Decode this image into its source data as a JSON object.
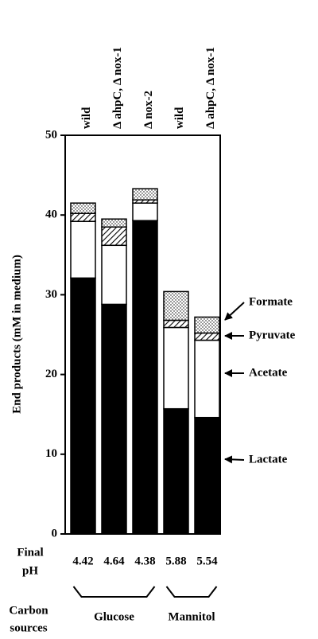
{
  "chart_data": {
    "type": "stacked_bar",
    "y_label": "End products (mM in medium)",
    "categories": [
      "wild",
      "Δ ahpC, Δ nox-1",
      "Δ nox-2",
      "wild",
      "Δ ahpC, Δ nox-1"
    ],
    "series": [
      {
        "name": "Lactate",
        "color": "#000000",
        "pattern": "solid",
        "values": [
          32.1,
          28.8,
          39.3,
          15.7,
          14.6
        ]
      },
      {
        "name": "Acetate",
        "color": "#ffffff",
        "pattern": "solid",
        "values": [
          7.1,
          7.4,
          2.2,
          10.2,
          9.7
        ]
      },
      {
        "name": "Pyruvate",
        "color": "#000000",
        "pattern": "hatch",
        "values": [
          1.0,
          2.3,
          0.4,
          0.9,
          0.9
        ]
      },
      {
        "name": "Formate",
        "color": "#000000",
        "pattern": "dots",
        "values": [
          1.3,
          1.0,
          1.4,
          3.6,
          2.0
        ]
      }
    ],
    "ylim": [
      0,
      50
    ],
    "yticks": [
      0,
      10,
      20,
      30,
      40,
      50
    ],
    "ph_label": [
      "Final",
      "pH"
    ],
    "ph": [
      4.42,
      4.64,
      4.38,
      5.88,
      5.54
    ],
    "carbon_label": [
      "Carbon",
      "sources"
    ],
    "groups": [
      "Glucose",
      "Mannitol"
    ]
  }
}
